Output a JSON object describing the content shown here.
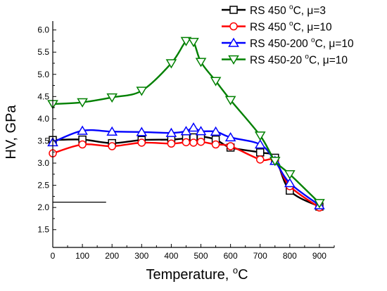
{
  "chart_data": {
    "type": "line",
    "xlabel": "Temperature, ",
    "xlabel_unit": "C",
    "xlabel_unit_sup": "o",
    "ylabel": "HV, GPa",
    "xlim": [
      0,
      950
    ],
    "ylim": [
      1.1,
      6.2
    ],
    "x_ticks": [
      "0",
      "100",
      "200",
      "300",
      "400",
      "500",
      "600",
      "700",
      "800",
      "900"
    ],
    "y_ticks": [
      "1.5",
      "2.0",
      "2.5",
      "3.0",
      "3.5",
      "4.0",
      "4.5",
      "5.0",
      "5.5",
      "6.0"
    ],
    "legend_position": "top-right",
    "reference_line": {
      "x": [
        0,
        180
      ],
      "y": [
        2.12,
        2.12
      ]
    },
    "series": [
      {
        "name": "RS 450 °C, μ=3",
        "label_parts": [
          "RS 450 ",
          "o",
          "C, ",
          "μ",
          "=3"
        ],
        "color": "#000000",
        "marker": "square",
        "x": [
          0,
          100,
          200,
          300,
          400,
          450,
          475,
          500,
          550,
          600,
          700,
          750,
          800,
          900
        ],
        "y": [
          3.52,
          3.53,
          3.45,
          3.52,
          3.53,
          3.56,
          3.58,
          3.6,
          3.53,
          3.35,
          3.24,
          3.12,
          2.38,
          2.02
        ]
      },
      {
        "name": "RS 450 °C, μ=10",
        "label_parts": [
          "RS 450 ",
          "o",
          "C, ",
          "μ",
          "=10"
        ],
        "color": "#ff0000",
        "marker": "circle",
        "x": [
          0,
          100,
          200,
          300,
          400,
          450,
          475,
          500,
          550,
          600,
          700,
          750,
          800,
          900
        ],
        "y": [
          3.22,
          3.42,
          3.38,
          3.46,
          3.44,
          3.47,
          3.46,
          3.48,
          3.42,
          3.38,
          3.08,
          3.05,
          2.48,
          2.0
        ]
      },
      {
        "name": "RS 450-200 °C, μ=10",
        "label_parts": [
          "RS 450-200 ",
          "o",
          "C, ",
          "μ",
          "=10"
        ],
        "color": "#0000ff",
        "marker": "triangle-up",
        "x": [
          0,
          100,
          200,
          300,
          400,
          450,
          475,
          500,
          550,
          600,
          700,
          750,
          800,
          900
        ],
        "y": [
          3.47,
          3.73,
          3.71,
          3.7,
          3.68,
          3.72,
          3.8,
          3.72,
          3.71,
          3.58,
          3.42,
          3.05,
          2.55,
          2.05
        ]
      },
      {
        "name": "RS 450-20 °C, μ=10",
        "label_parts": [
          "RS 450-20 ",
          "o",
          "C, ",
          "μ",
          "=10"
        ],
        "color": "#008000",
        "marker": "triangle-down",
        "x": [
          0,
          100,
          200,
          300,
          400,
          450,
          475,
          500,
          550,
          600,
          700,
          750,
          800,
          900
        ],
        "y": [
          4.33,
          4.37,
          4.48,
          4.63,
          5.25,
          5.75,
          5.73,
          5.28,
          4.85,
          4.42,
          3.62,
          3.05,
          2.75,
          2.1
        ]
      }
    ]
  }
}
